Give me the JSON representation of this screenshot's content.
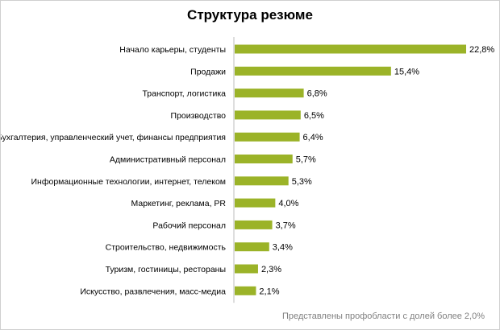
{
  "chart_data": {
    "type": "bar",
    "orientation": "horizontal",
    "title": "Структура резюме",
    "categories": [
      "Начало карьеры, студенты",
      "Продажи",
      "Транспорт, логистика",
      "Производство",
      "Бухгалтерия, управленческий учет, финансы предприятия",
      "Административный персонал",
      "Информационные технологии, интернет, телеком",
      "Маркетинг, реклама, PR",
      "Рабочий персонал",
      "Строительство, недвижимость",
      "Туризм, гостиницы, рестораны",
      "Искусство, развлечения, масс-медиа"
    ],
    "values": [
      22.8,
      15.4,
      6.8,
      6.5,
      6.4,
      5.7,
      5.3,
      4.0,
      3.7,
      3.4,
      2.3,
      2.1
    ],
    "value_labels": [
      "22,8%",
      "15,4%",
      "6,8%",
      "6,5%",
      "6,4%",
      "5,7%",
      "5,3%",
      "4,0%",
      "3,7%",
      "3,4%",
      "2,3%",
      "2,1%"
    ],
    "xlim": [
      0,
      22.8
    ],
    "grid": false,
    "legend": "none",
    "bar_color": "#9bb328"
  },
  "footnote": "Представлены профобласти с долей более 2,0%"
}
